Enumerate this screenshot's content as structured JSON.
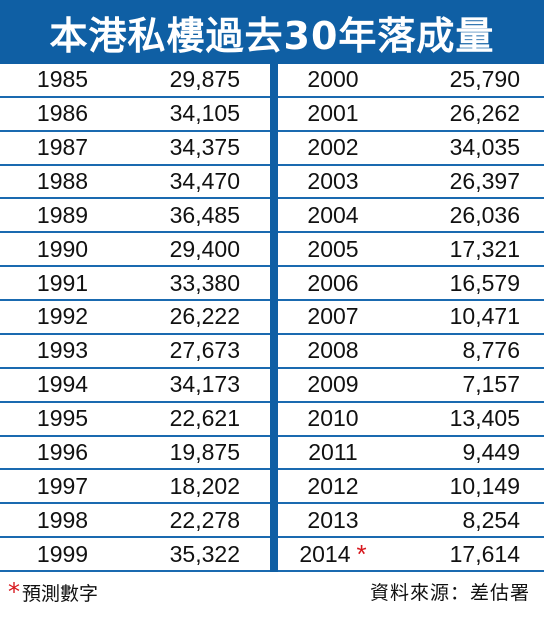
{
  "title": "本港私樓過去30年落成量",
  "chart_data": {
    "type": "table",
    "title": "本港私樓過去30年落成量",
    "columns": [
      [
        {
          "year": "1985",
          "value": "29,875"
        },
        {
          "year": "1986",
          "value": "34,105"
        },
        {
          "year": "1987",
          "value": "34,375"
        },
        {
          "year": "1988",
          "value": "34,470"
        },
        {
          "year": "1989",
          "value": "36,485"
        },
        {
          "year": "1990",
          "value": "29,400"
        },
        {
          "year": "1991",
          "value": "33,380"
        },
        {
          "year": "1992",
          "value": "26,222"
        },
        {
          "year": "1993",
          "value": "27,673"
        },
        {
          "year": "1994",
          "value": "34,173"
        },
        {
          "year": "1995",
          "value": "22,621"
        },
        {
          "year": "1996",
          "value": "19,875"
        },
        {
          "year": "1997",
          "value": "18,202"
        },
        {
          "year": "1998",
          "value": "22,278"
        },
        {
          "year": "1999",
          "value": "35,322"
        }
      ],
      [
        {
          "year": "2000",
          "value": "25,790"
        },
        {
          "year": "2001",
          "value": "26,262"
        },
        {
          "year": "2002",
          "value": "34,035"
        },
        {
          "year": "2003",
          "value": "26,397"
        },
        {
          "year": "2004",
          "value": "26,036"
        },
        {
          "year": "2005",
          "value": "17,321"
        },
        {
          "year": "2006",
          "value": "16,579"
        },
        {
          "year": "2007",
          "value": "10,471"
        },
        {
          "year": "2008",
          "value": "8,776"
        },
        {
          "year": "2009",
          "value": "7,157"
        },
        {
          "year": "2010",
          "value": "13,405"
        },
        {
          "year": "2011",
          "value": "9,449"
        },
        {
          "year": "2012",
          "value": "10,149"
        },
        {
          "year": "2013",
          "value": "8,254"
        },
        {
          "year": "2014",
          "value": "17,614",
          "mark": "*"
        }
      ]
    ]
  },
  "footer": {
    "note_mark": "*",
    "note_text": "預測數字",
    "source": "資料來源：差估署"
  },
  "colors": {
    "header_blue": "#0f5fa4",
    "rule_blue": "#1a6ab0",
    "asterisk_red": "#d7161c"
  }
}
